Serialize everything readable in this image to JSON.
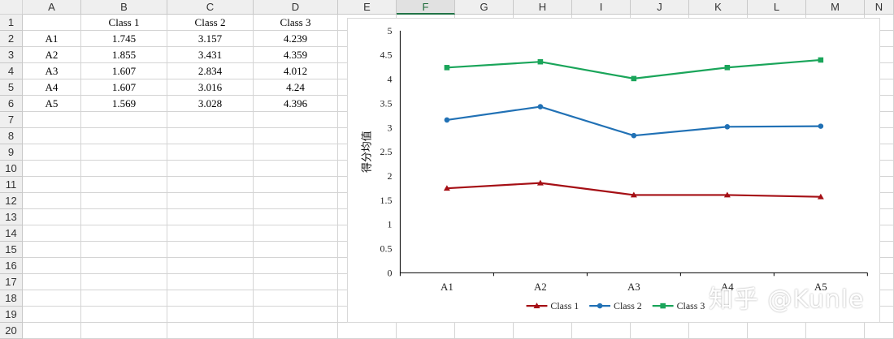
{
  "columns": [
    "A",
    "B",
    "C",
    "D",
    "E",
    "F",
    "G",
    "H",
    "I",
    "J",
    "K",
    "L",
    "M",
    "N"
  ],
  "selected_column": "F",
  "rows": [
    "1",
    "2",
    "3",
    "4",
    "5",
    "6",
    "7",
    "8",
    "9",
    "10",
    "11",
    "12",
    "13",
    "14",
    "15",
    "16",
    "17",
    "18",
    "19",
    "20"
  ],
  "table": {
    "headers": [
      "",
      "Class 1",
      "Class 2",
      "Class 3"
    ],
    "rows": [
      [
        "A1",
        "1.745",
        "3.157",
        "4.239"
      ],
      [
        "A2",
        "1.855",
        "3.431",
        "4.359"
      ],
      [
        "A3",
        "1.607",
        "2.834",
        "4.012"
      ],
      [
        "A4",
        "1.607",
        "3.016",
        "4.24"
      ],
      [
        "A5",
        "1.569",
        "3.028",
        "4.396"
      ]
    ]
  },
  "chart_data": {
    "type": "line",
    "categories": [
      "A1",
      "A2",
      "A3",
      "A4",
      "A5"
    ],
    "series": [
      {
        "name": "Class 1",
        "values": [
          1.745,
          1.855,
          1.607,
          1.607,
          1.569
        ],
        "color": "#a50f15",
        "marker": "triangle"
      },
      {
        "name": "Class 2",
        "values": [
          3.157,
          3.431,
          2.834,
          3.016,
          3.028
        ],
        "color": "#2171b5",
        "marker": "circle"
      },
      {
        "name": "Class 3",
        "values": [
          4.239,
          4.359,
          4.012,
          4.24,
          4.396
        ],
        "color": "#1aa55a",
        "marker": "square"
      }
    ],
    "ylabel": "得分均值",
    "ylim": [
      0,
      5
    ],
    "yticks": [
      "0",
      "0.5",
      "1",
      "1.5",
      "2",
      "2.5",
      "3",
      "3.5",
      "4",
      "4.5",
      "5"
    ],
    "grid": false,
    "legend": "bottom"
  },
  "watermark": "知乎 @Kunle"
}
